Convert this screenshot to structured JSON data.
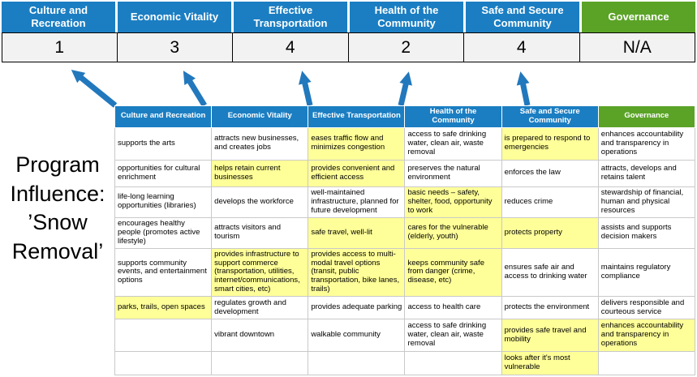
{
  "title": "Program Influence: ’Snow Removal’",
  "colors": {
    "header_blue": "#1b7ec2",
    "header_green": "#5ba327",
    "highlight_yellow": "#ffff99",
    "arrow_blue": "#2278bc",
    "score_bg": "#f2f2f2"
  },
  "scoreboard": {
    "categories": [
      {
        "label": "Culture and Recreation",
        "score": "1"
      },
      {
        "label": "Economic Vitality",
        "score": "3"
      },
      {
        "label": "Effective Transportation",
        "score": "4"
      },
      {
        "label": "Health of the Community",
        "score": "2"
      },
      {
        "label": "Safe and Secure Community",
        "score": "4"
      },
      {
        "label": "Governance",
        "score": "N/A"
      }
    ]
  },
  "arrows": {
    "icon": "up-arrow",
    "count": 5
  },
  "matrix": {
    "headers": [
      "Culture and Recreation",
      "Economic Vitality",
      "Effective Transportation",
      "Health of the Community",
      "Safe and Secure Community",
      "Governance"
    ],
    "rows": [
      [
        {
          "t": "supports the arts",
          "hl": false
        },
        {
          "t": "attracts new businesses, and creates jobs",
          "hl": false
        },
        {
          "t": "eases traffic flow and minimizes congestion",
          "hl": true
        },
        {
          "t": "access to safe drinking water, clean air, waste removal",
          "hl": false
        },
        {
          "t": "is prepared to respond to emergencies",
          "hl": true
        },
        {
          "t": "enhances accountability and transparency in operations",
          "hl": false
        }
      ],
      [
        {
          "t": "opportunities for cultural enrichment",
          "hl": false
        },
        {
          "t": "helps retain current businesses",
          "hl": true
        },
        {
          "t": "provides convenient and efficient access",
          "hl": true
        },
        {
          "t": "preserves the natural environment",
          "hl": false
        },
        {
          "t": "enforces the law",
          "hl": false
        },
        {
          "t": "attracts, develops and retains talent",
          "hl": false
        }
      ],
      [
        {
          "t": "life-long learning opportunities (libraries)",
          "hl": false
        },
        {
          "t": "develops the workforce",
          "hl": false
        },
        {
          "t": "well-maintained infrastructure, planned for future development",
          "hl": false
        },
        {
          "t": "basic needs – safety, shelter, food, opportunity to work",
          "hl": true
        },
        {
          "t": "reduces crime",
          "hl": false
        },
        {
          "t": "stewardship of financial, human and physical resources",
          "hl": false
        }
      ],
      [
        {
          "t": "encourages healthy people (promotes active lifestyle)",
          "hl": false
        },
        {
          "t": "attracts visitors and tourism",
          "hl": false
        },
        {
          "t": "safe travel, well-lit",
          "hl": true
        },
        {
          "t": "cares for the vulnerable (elderly, youth)",
          "hl": true
        },
        {
          "t": "protects property",
          "hl": true
        },
        {
          "t": "assists and supports decision makers",
          "hl": false
        }
      ],
      [
        {
          "t": "supports community events, and entertainment options",
          "hl": false
        },
        {
          "t": "provides infrastructure to support commerce (transportation, utilities, internet/communications, smart cities, etc)",
          "hl": true
        },
        {
          "t": "provides access to multi-modal travel options (transit, public transportation, bike lanes, trails)",
          "hl": true
        },
        {
          "t": "keeps community safe from danger (crime, disease, etc)",
          "hl": true
        },
        {
          "t": "ensures safe air and access to drinking water",
          "hl": false
        },
        {
          "t": "maintains regulatory compliance",
          "hl": false
        }
      ],
      [
        {
          "t": "parks, trails, open spaces",
          "hl": true
        },
        {
          "t": "regulates growth and development",
          "hl": false
        },
        {
          "t": "provides adequate parking",
          "hl": false
        },
        {
          "t": "access to health care",
          "hl": false
        },
        {
          "t": "protects the environment",
          "hl": false
        },
        {
          "t": "delivers responsible and courteous service",
          "hl": false
        }
      ],
      [
        {
          "t": "",
          "hl": false
        },
        {
          "t": "vibrant downtown",
          "hl": false
        },
        {
          "t": "walkable community",
          "hl": false
        },
        {
          "t": "access to safe drinking water, clean air, waste removal",
          "hl": false
        },
        {
          "t": "provides safe travel and mobility",
          "hl": true
        },
        {
          "t": "enhances accountability and transparency in operations",
          "hl": true
        }
      ],
      [
        {
          "t": "",
          "hl": false
        },
        {
          "t": "",
          "hl": false
        },
        {
          "t": "",
          "hl": false
        },
        {
          "t": "",
          "hl": false
        },
        {
          "t": "looks after it's most vulnerable",
          "hl": true
        },
        {
          "t": "",
          "hl": false
        }
      ]
    ]
  }
}
